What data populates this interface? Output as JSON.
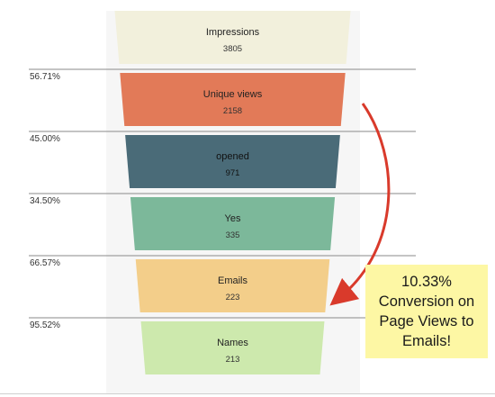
{
  "chart_data": {
    "type": "funnel",
    "stages": [
      {
        "label": "Impressions",
        "value": 3805,
        "color": "#f2f0dc"
      },
      {
        "label": "Unique views",
        "value": 2158,
        "color": "#e27a58"
      },
      {
        "label": "opened",
        "value": 971,
        "color": "#4a6b78"
      },
      {
        "label": "Yes",
        "value": 335,
        "color": "#7cb89a"
      },
      {
        "label": "Emails",
        "value": 223,
        "color": "#f3ce8a"
      },
      {
        "label": "Names",
        "value": 213,
        "color": "#cde9ad"
      }
    ],
    "conversion_rates": [
      "56.71%",
      "45.00%",
      "34.50%",
      "66.57%",
      "95.52%"
    ]
  },
  "annotation": {
    "lines": [
      "10.33%",
      "Conversion on",
      "Page Views to",
      "Emails!"
    ],
    "arrow_color": "#d93a2b",
    "background": "#fdf7a4"
  }
}
